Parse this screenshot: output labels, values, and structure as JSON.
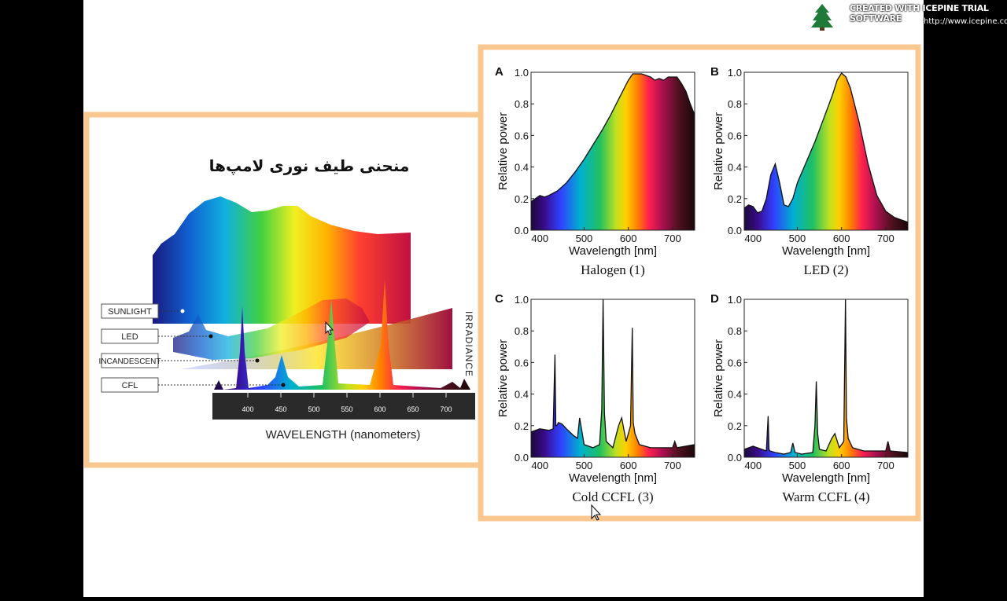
{
  "watermark": {
    "title": "CREATED WITH ICEPINE TRIAL SOFTWARE",
    "url": "http://www.icepine.com",
    "icon": "pine-tree-icon"
  },
  "left_figure": {
    "title": "منحنی طیف نوری لامپ‌ها",
    "y_side_label": "IRRADIANCE",
    "x_label": "WAVELENGTH (nanometers)",
    "ticks": [
      "400",
      "450",
      "500",
      "550",
      "600",
      "650",
      "700"
    ],
    "legend": [
      "SUNLIGHT",
      "LED",
      "INCANDESCENT",
      "CFL"
    ]
  },
  "chart_data": [
    {
      "type": "area",
      "panel": "A",
      "title": "Halogen (1)",
      "xlabel": "Wavelength [nm]",
      "ylabel": "Relative power",
      "xlim": [
        380,
        750
      ],
      "ylim": [
        0,
        1.0
      ],
      "xticks": [
        "400",
        "500",
        "600",
        "700"
      ],
      "yticks": [
        "0.0",
        "0.2",
        "0.4",
        "0.6",
        "0.8",
        "1.0"
      ],
      "x": [
        380,
        390,
        400,
        410,
        420,
        440,
        460,
        480,
        500,
        520,
        540,
        560,
        580,
        600,
        610,
        620,
        630,
        640,
        650,
        660,
        670,
        680,
        690,
        700,
        710,
        720,
        730,
        740,
        750
      ],
      "y": [
        0.18,
        0.2,
        0.22,
        0.21,
        0.22,
        0.25,
        0.3,
        0.37,
        0.45,
        0.54,
        0.63,
        0.73,
        0.84,
        0.95,
        0.99,
        0.99,
        0.99,
        0.98,
        0.97,
        0.95,
        0.96,
        0.95,
        0.97,
        0.97,
        0.97,
        0.93,
        0.88,
        0.8,
        0.73
      ]
    },
    {
      "type": "area",
      "panel": "B",
      "title": "LED (2)",
      "xlabel": "Wavelength [nm]",
      "ylabel": "Relative power",
      "xlim": [
        380,
        750
      ],
      "ylim": [
        0,
        1.0
      ],
      "xticks": [
        "400",
        "500",
        "600",
        "700"
      ],
      "yticks": [
        "0.0",
        "0.2",
        "0.4",
        "0.6",
        "0.8",
        "1.0"
      ],
      "x": [
        380,
        390,
        400,
        410,
        420,
        430,
        440,
        450,
        460,
        470,
        480,
        490,
        500,
        520,
        540,
        560,
        580,
        590,
        600,
        610,
        620,
        640,
        660,
        680,
        700,
        720,
        750
      ],
      "y": [
        0.14,
        0.16,
        0.15,
        0.11,
        0.12,
        0.2,
        0.35,
        0.42,
        0.3,
        0.16,
        0.15,
        0.2,
        0.3,
        0.43,
        0.56,
        0.71,
        0.86,
        0.95,
        0.995,
        0.97,
        0.9,
        0.68,
        0.42,
        0.22,
        0.12,
        0.08,
        0.05
      ]
    },
    {
      "type": "area",
      "panel": "C",
      "title": "Cold CCFL (3)",
      "xlabel": "Wavelength [nm]",
      "ylabel": "Relative power",
      "xlim": [
        380,
        750
      ],
      "ylim": [
        0,
        1.0
      ],
      "xticks": [
        "400",
        "500",
        "600",
        "700"
      ],
      "yticks": [
        "0.0",
        "0.2",
        "0.4",
        "0.6",
        "0.8",
        "1.0"
      ],
      "x": [
        380,
        400,
        420,
        430,
        434,
        436,
        438,
        442,
        450,
        460,
        475,
        485,
        490,
        500,
        520,
        535,
        540,
        543,
        546,
        550,
        565,
        578,
        585,
        595,
        605,
        609,
        611,
        615,
        625,
        650,
        680,
        700,
        705,
        710,
        750
      ],
      "y": [
        0.16,
        0.18,
        0.17,
        0.18,
        0.65,
        0.2,
        0.2,
        0.22,
        0.21,
        0.18,
        0.14,
        0.12,
        0.25,
        0.08,
        0.06,
        0.08,
        0.3,
        1.0,
        0.28,
        0.1,
        0.06,
        0.2,
        0.25,
        0.1,
        0.2,
        0.82,
        0.22,
        0.15,
        0.08,
        0.06,
        0.06,
        0.06,
        0.1,
        0.06,
        0.08
      ]
    },
    {
      "type": "area",
      "panel": "D",
      "title": "Warm CCFL (4)",
      "xlabel": "Wavelength [nm]",
      "ylabel": "Relative power",
      "xlim": [
        380,
        750
      ],
      "ylim": [
        0,
        1.0
      ],
      "xticks": [
        "400",
        "500",
        "600",
        "700"
      ],
      "yticks": [
        "0.0",
        "0.2",
        "0.4",
        "0.6",
        "0.8",
        "1.0"
      ],
      "x": [
        380,
        400,
        420,
        430,
        434,
        436,
        438,
        450,
        470,
        485,
        490,
        495,
        510,
        535,
        540,
        543,
        546,
        550,
        565,
        578,
        585,
        595,
        605,
        609,
        611,
        615,
        625,
        650,
        680,
        700,
        705,
        710,
        750
      ],
      "y": [
        0.05,
        0.07,
        0.05,
        0.04,
        0.26,
        0.05,
        0.04,
        0.03,
        0.02,
        0.03,
        0.09,
        0.03,
        0.02,
        0.03,
        0.2,
        0.48,
        0.15,
        0.05,
        0.04,
        0.12,
        0.15,
        0.06,
        0.1,
        1.0,
        0.25,
        0.12,
        0.06,
        0.04,
        0.04,
        0.04,
        0.1,
        0.04,
        0.03
      ]
    }
  ]
}
